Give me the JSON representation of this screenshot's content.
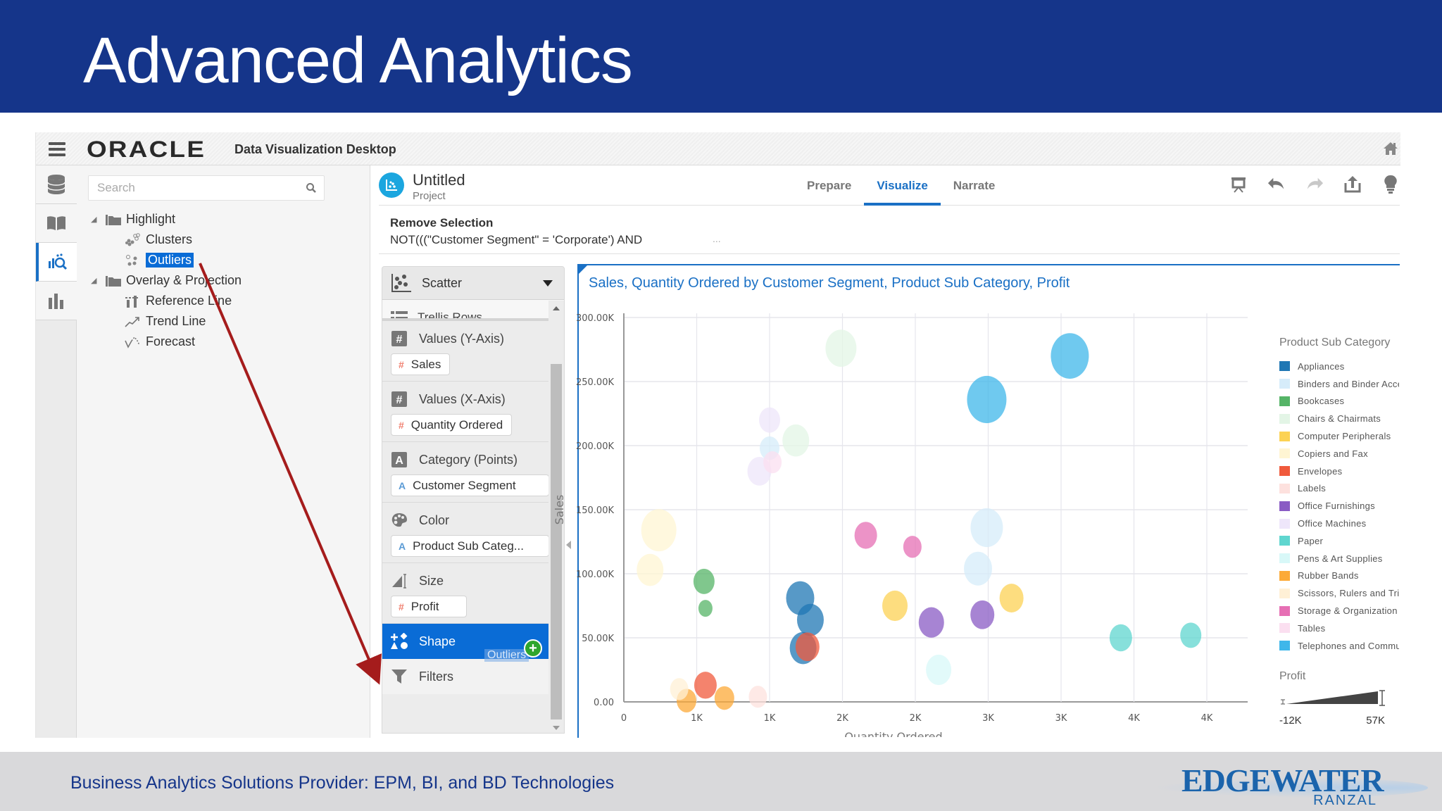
{
  "slide": {
    "title": "Advanced Analytics",
    "footer_text": "Business Analytics Solutions Provider:  EPM, BI, and BD Technologies",
    "logo_main": "EDGEWATER",
    "logo_sub": "RANZAL"
  },
  "app": {
    "brand": "ORACLE",
    "name": "Data Visualization Desktop",
    "menu_icon": "hamburger-icon",
    "home_icon": "home-icon"
  },
  "rail": {
    "items": [
      {
        "icon": "database-icon",
        "active": false
      },
      {
        "icon": "book-icon",
        "active": false
      },
      {
        "icon": "analytics-icon",
        "active": true
      },
      {
        "icon": "bar-chart-icon",
        "active": false
      }
    ]
  },
  "tree": {
    "search_placeholder": "Search",
    "groups": [
      {
        "label": "Highlight",
        "children": [
          {
            "label": "Clusters",
            "icon": "clusters-icon"
          },
          {
            "label": "Outliers",
            "icon": "outliers-icon",
            "selected": true
          }
        ]
      },
      {
        "label": "Overlay & Projection",
        "children": [
          {
            "label": "Reference Line",
            "icon": "reference-line-icon"
          },
          {
            "label": "Trend Line",
            "icon": "trend-line-icon"
          },
          {
            "label": "Forecast",
            "icon": "forecast-icon"
          }
        ]
      }
    ]
  },
  "project": {
    "name": "Untitled",
    "subtitle": "Project",
    "tabs": [
      {
        "label": "Prepare",
        "active": false
      },
      {
        "label": "Visualize",
        "active": true
      },
      {
        "label": "Narrate",
        "active": false
      }
    ],
    "toolbar": [
      "present-icon",
      "undo-icon",
      "redo-icon",
      "export-icon",
      "insights-icon"
    ]
  },
  "selection": {
    "title": "Remove Selection",
    "expression": "NOT(((\"Customer Segment\" = 'Corporate') AND",
    "ellipsis": "..."
  },
  "grammar": {
    "viz_type": "Scatter",
    "trellis": "Trellis Rows",
    "sections": [
      {
        "label": "Values (Y-Axis)",
        "pill": "Sales",
        "pill_type": "number"
      },
      {
        "label": "Values (X-Axis)",
        "pill": "Quantity Ordered",
        "pill_type": "number"
      },
      {
        "label": "Category (Points)",
        "pill": "Customer Segment",
        "pill_type": "attribute"
      },
      {
        "label": "Color",
        "pill": "Product Sub Categ...",
        "pill_type": "attribute"
      },
      {
        "label": "Size",
        "pill": "Profit",
        "pill_type": "number"
      }
    ],
    "shape_label": "Shape",
    "drag_ghost": "Outliers",
    "filters_label": "Filters",
    "number_glyph": "#",
    "attribute_glyph": "A"
  },
  "chart_data": {
    "type": "scatter",
    "title": "Sales, Quantity Ordered by Customer Segment, Product Sub Category, Profit",
    "xlabel": "Quantity Ordered",
    "ylabel": "Sales",
    "x_tick_labels": [
      "0",
      "1K",
      "1K",
      "2K",
      "2K",
      "3K",
      "3K",
      "4K",
      "4K"
    ],
    "x_tick_values": [
      0,
      500,
      1000,
      1500,
      2000,
      2500,
      3000,
      3500,
      4000
    ],
    "y_tick_labels": [
      "0.00",
      "50.00K",
      "100.00K",
      "150.00K",
      "200.00K",
      "250.00K",
      "300.00K"
    ],
    "xlim": [
      0,
      4250
    ],
    "ylim": [
      0,
      300000
    ],
    "grid": true,
    "legend_position": "right",
    "legend_title": "Product Sub Category",
    "size_legend": {
      "title": "Profit",
      "min_label": "-12K",
      "max_label": "57K"
    },
    "series": [
      {
        "name": "Appliances",
        "color": "#1f77b4",
        "points": [
          [
            1210,
            81000,
            20
          ],
          [
            1280,
            64000,
            19
          ],
          [
            1230,
            42000,
            19
          ]
        ]
      },
      {
        "name": "Binders and Binder Accessories",
        "color": "#d6ecfa",
        "points": [
          [
            2490,
            136000,
            23
          ],
          [
            2430,
            104000,
            20
          ],
          [
            1000,
            198000,
            14
          ]
        ]
      },
      {
        "name": "Bookcases",
        "color": "#55b467",
        "points": [
          [
            550,
            94000,
            15
          ],
          [
            560,
            73000,
            10
          ]
        ]
      },
      {
        "name": "Chairs & Chairmats",
        "color": "#e3f5e6",
        "points": [
          [
            1490,
            276000,
            22
          ],
          [
            1180,
            204000,
            19
          ]
        ]
      },
      {
        "name": "Computer Peripherals",
        "color": "#fcd254",
        "points": [
          [
            1860,
            75000,
            18
          ],
          [
            2660,
            81000,
            17
          ]
        ]
      },
      {
        "name": "Copiers and Fax",
        "color": "#fff5d3",
        "points": [
          [
            240,
            134000,
            25
          ],
          [
            180,
            103000,
            19
          ]
        ]
      },
      {
        "name": "Envelopes",
        "color": "#f05a3c",
        "points": [
          [
            1260,
            43000,
            17
          ],
          [
            560,
            13000,
            16
          ]
        ]
      },
      {
        "name": "Labels",
        "color": "#fde1de",
        "points": [
          [
            920,
            4000,
            13
          ]
        ]
      },
      {
        "name": "Office Furnishings",
        "color": "#8a5bc4",
        "points": [
          [
            2110,
            62000,
            18
          ],
          [
            2460,
            68000,
            17
          ]
        ]
      },
      {
        "name": "Office Machines",
        "color": "#eee6fa",
        "points": [
          [
            1000,
            220000,
            15
          ],
          [
            930,
            180000,
            17
          ]
        ]
      },
      {
        "name": "Paper",
        "color": "#5fd6cf",
        "points": [
          [
            3410,
            50000,
            16
          ],
          [
            3890,
            52000,
            15
          ]
        ]
      },
      {
        "name": "Pens & Art Supplies",
        "color": "#d8f8f8",
        "points": [
          [
            2160,
            25000,
            18
          ]
        ]
      },
      {
        "name": "Rubber Bands",
        "color": "#fcaa38",
        "points": [
          [
            430,
            1000,
            14
          ],
          [
            690,
            3000,
            14
          ]
        ]
      },
      {
        "name": "Scissors, Rulers and Trimmers",
        "color": "#fff0d6",
        "points": [
          [
            380,
            10000,
            13
          ]
        ]
      },
      {
        "name": "Storage & Organization",
        "color": "#e66fb4",
        "points": [
          [
            1660,
            130000,
            16
          ],
          [
            1980,
            121000,
            13
          ]
        ]
      },
      {
        "name": "Tables",
        "color": "#fbdff0",
        "points": [
          [
            1020,
            187000,
            13
          ]
        ]
      },
      {
        "name": "Telephones and Communication",
        "color": "#3fb7ea",
        "points": [
          [
            2490,
            236000,
            28
          ],
          [
            3060,
            270000,
            27
          ]
        ]
      }
    ]
  }
}
